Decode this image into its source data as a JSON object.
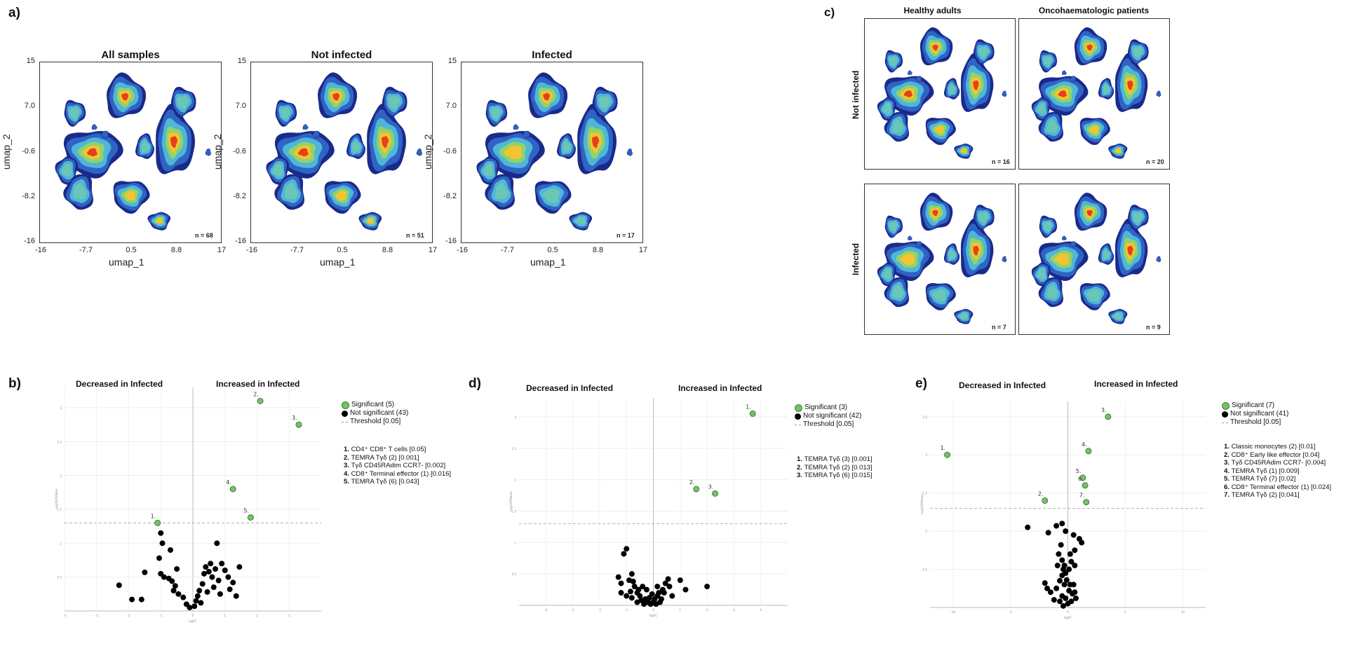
{
  "panel_a": {
    "letter": "a)",
    "plots": [
      {
        "title": "All samples",
        "n": "n = 68"
      },
      {
        "title": "Not infected",
        "n": "n = 51"
      },
      {
        "title": "Infected",
        "n": "n = 17"
      }
    ],
    "x_ticks": [
      "-16",
      "-7.7",
      "0.5",
      "8.8",
      "17"
    ],
    "y_ticks": [
      "15",
      "7.0",
      "-0.6",
      "-8.2",
      "-16"
    ],
    "xlabel": "umap_1",
    "ylabel": "umap_2"
  },
  "panel_c": {
    "letter": "c)",
    "col_titles": [
      "Healthy adults",
      "Oncohaematologic patients"
    ],
    "row_titles": [
      "Not infected",
      "Infected"
    ],
    "n_labels": [
      "n = 16",
      "n = 20",
      "n = 7",
      "n = 9"
    ]
  },
  "colors": {
    "significant": "#77c06a",
    "not_significant": "#000000",
    "threshold": "#b0b0b0"
  },
  "chart_data": [
    {
      "type": "scatter",
      "panel": "b)",
      "title_left": "Decreased in Infected",
      "title_right": "Increased in Infected",
      "xlabel": "logFC",
      "ylabel": "-Log10(PValue)",
      "xlim": [
        -4,
        4
      ],
      "ylim": [
        0,
        3.3
      ],
      "x_ticks": [
        "-4",
        "-3",
        "-2",
        "-1",
        "0",
        "1",
        "2",
        "3"
      ],
      "y_ticks": [
        "0.5",
        "1",
        "1.5",
        "2",
        "2.5",
        "3"
      ],
      "threshold": 1.3,
      "legend": [
        "Significant (5)",
        "Not significant (43)",
        "Threshold [0.05]"
      ],
      "significant": [
        {
          "label": "1.",
          "x": -1.1,
          "y": 1.3
        },
        {
          "label": "2.",
          "x": 2.1,
          "y": 3.1
        },
        {
          "label": "3.",
          "x": 3.3,
          "y": 2.75
        },
        {
          "label": "4.",
          "x": 1.25,
          "y": 1.8
        },
        {
          "label": "5.",
          "x": 1.8,
          "y": 1.38
        }
      ],
      "sig_list": [
        {
          "num": "1.",
          "text": "CD4⁺ CD8⁺ T cells [0.05]"
        },
        {
          "num": "2.",
          "text": "TEMRA Tγδ (2) [0.001]"
        },
        {
          "num": "3.",
          "text": "Tγδ CD45RAdim CCR7- [0.002]"
        },
        {
          "num": "4.",
          "text": "CD8⁺ Terminal effector (1) [0.016]"
        },
        {
          "num": "5.",
          "text": "TEMRA Tγδ (6) [0.043]"
        }
      ],
      "not_significant": [
        [
          -2.3,
          0.38
        ],
        [
          -1.9,
          0.17
        ],
        [
          -1.6,
          0.17
        ],
        [
          -1.5,
          0.57
        ],
        [
          -1.0,
          1.15
        ],
        [
          -0.95,
          1.0
        ],
        [
          -1.05,
          0.78
        ],
        [
          -0.7,
          0.9
        ],
        [
          -1.0,
          0.55
        ],
        [
          -0.9,
          0.5
        ],
        [
          -0.75,
          0.48
        ],
        [
          -0.65,
          0.44
        ],
        [
          -0.5,
          0.62
        ],
        [
          -0.6,
          0.3
        ],
        [
          -0.55,
          0.37
        ],
        [
          -0.45,
          0.25
        ],
        [
          -0.3,
          0.2
        ],
        [
          -0.2,
          0.1
        ],
        [
          -0.1,
          0.05
        ],
        [
          0.05,
          0.07
        ],
        [
          0.1,
          0.15
        ],
        [
          0.15,
          0.22
        ],
        [
          0.2,
          0.3
        ],
        [
          0.3,
          0.4
        ],
        [
          0.35,
          0.55
        ],
        [
          0.4,
          0.65
        ],
        [
          0.5,
          0.58
        ],
        [
          0.55,
          0.7
        ],
        [
          0.6,
          0.5
        ],
        [
          0.7,
          0.62
        ],
        [
          0.8,
          0.45
        ],
        [
          0.9,
          0.7
        ],
        [
          1.0,
          0.6
        ],
        [
          1.1,
          0.5
        ],
        [
          0.75,
          1.0
        ],
        [
          0.45,
          0.28
        ],
        [
          0.25,
          0.12
        ],
        [
          0.65,
          0.35
        ],
        [
          0.85,
          0.25
        ],
        [
          1.15,
          0.32
        ],
        [
          1.25,
          0.42
        ],
        [
          1.45,
          0.65
        ],
        [
          1.35,
          0.22
        ]
      ]
    },
    {
      "type": "scatter",
      "panel": "d)",
      "title_left": "Decreased in Infected",
      "title_right": "Increased in Infected",
      "xlabel": "logFC",
      "ylabel": "-Log10(PValue)",
      "xlim": [
        -5,
        5
      ],
      "ylim": [
        0,
        3.3
      ],
      "x_ticks": [
        "-4",
        "-3",
        "-2",
        "-1",
        "0",
        "1",
        "2",
        "3",
        "4"
      ],
      "y_ticks": [
        "0.5",
        "1",
        "1.5",
        "2",
        "2.5",
        "3"
      ],
      "threshold": 1.3,
      "legend": [
        "Significant (3)",
        "Not significant (42)",
        "Threshold [0.05]"
      ],
      "significant": [
        {
          "label": "1.",
          "x": 3.7,
          "y": 3.05
        },
        {
          "label": "2.",
          "x": 1.6,
          "y": 1.85
        },
        {
          "label": "3.",
          "x": 2.3,
          "y": 1.78
        }
      ],
      "sig_list": [
        {
          "num": "1.",
          "text": "TEMRA Tγδ (3) [0.001]"
        },
        {
          "num": "2.",
          "text": "TEMRA Tγδ (2) [0.013]"
        },
        {
          "num": "3.",
          "text": "TEMRA Tγδ (6) [0.015]"
        }
      ],
      "not_significant": [
        [
          -1.0,
          0.9
        ],
        [
          -1.1,
          0.82
        ],
        [
          -0.8,
          0.5
        ],
        [
          -0.9,
          0.4
        ],
        [
          -1.2,
          0.35
        ],
        [
          -1.3,
          0.45
        ],
        [
          -0.7,
          0.3
        ],
        [
          -0.85,
          0.22
        ],
        [
          -1.0,
          0.15
        ],
        [
          -1.2,
          0.2
        ],
        [
          -0.6,
          0.2
        ],
        [
          -0.5,
          0.15
        ],
        [
          -0.45,
          0.08
        ],
        [
          -0.3,
          0.1
        ],
        [
          -0.35,
          0.02
        ],
        [
          -0.2,
          0.05
        ],
        [
          -0.15,
          0.12
        ],
        [
          -0.1,
          0.02
        ],
        [
          0.0,
          0.05
        ],
        [
          0.05,
          0.1
        ],
        [
          0.1,
          0.02
        ],
        [
          0.15,
          0.15
        ],
        [
          0.2,
          0.2
        ],
        [
          0.3,
          0.1
        ],
        [
          0.35,
          0.25
        ],
        [
          0.45,
          0.35
        ],
        [
          0.55,
          0.42
        ],
        [
          0.6,
          0.3
        ],
        [
          0.7,
          0.15
        ],
        [
          1.0,
          0.4
        ],
        [
          1.2,
          0.25
        ],
        [
          2.0,
          0.3
        ],
        [
          -0.6,
          0.05
        ],
        [
          -0.8,
          0.12
        ],
        [
          -0.25,
          0.25
        ],
        [
          0.25,
          0.05
        ],
        [
          -0.05,
          0.18
        ],
        [
          0.4,
          0.2
        ],
        [
          -0.4,
          0.3
        ],
        [
          0.15,
          0.3
        ],
        [
          -0.55,
          0.25
        ],
        [
          -0.75,
          0.38
        ]
      ]
    },
    {
      "type": "scatter",
      "panel": "e)",
      "title_left": "Decreased in Infected",
      "title_right": "Increased in Infected",
      "xlabel": "logFC",
      "ylabel": "-Log10(PValue)",
      "xlim": [
        -12,
        12
      ],
      "ylim": [
        0,
        2.7
      ],
      "x_ticks": [
        "-10",
        "-5",
        "0",
        "5",
        "10"
      ],
      "y_ticks": [
        "0.5",
        "1",
        "1.5",
        "2",
        "2.5"
      ],
      "threshold": 1.3,
      "legend": [
        "Significant (7)",
        "Not significant (41)",
        "Threshold [0.05]"
      ],
      "significant": [
        {
          "label": "1.",
          "x": -10.5,
          "y": 2.0
        },
        {
          "label": "2.",
          "x": -2.0,
          "y": 1.4
        },
        {
          "label": "3.",
          "x": 3.5,
          "y": 2.5
        },
        {
          "label": "4.",
          "x": 1.8,
          "y": 2.05
        },
        {
          "label": "5.",
          "x": 1.3,
          "y": 1.7
        },
        {
          "label": "6.",
          "x": 1.5,
          "y": 1.6
        },
        {
          "label": "7.",
          "x": 1.6,
          "y": 1.38
        }
      ],
      "sig_list": [
        {
          "num": "1.",
          "text": "Classic monocytes (2) [0.01]"
        },
        {
          "num": "2.",
          "text": "CD8⁺ Early like effector [0.04]"
        },
        {
          "num": "3.",
          "text": "Tγδ CD45RAdim CCR7- [0.004]"
        },
        {
          "num": "4.",
          "text": "TEMRA Tγδ (1) [0.009]"
        },
        {
          "num": "5.",
          "text": "TEMRA Tγδ (7) [0.02]"
        },
        {
          "num": "6.",
          "text": "CD8⁺ Terminal effector (1) [0.024]"
        },
        {
          "num": "7.",
          "text": "TEMRA Tγδ (2) [0.041]"
        }
      ],
      "not_significant": [
        [
          -3.5,
          1.05
        ],
        [
          -1.0,
          1.07
        ],
        [
          -1.7,
          0.98
        ],
        [
          -0.5,
          1.1
        ],
        [
          -0.2,
          1.0
        ],
        [
          0.5,
          0.95
        ],
        [
          1.0,
          0.9
        ],
        [
          1.2,
          0.85
        ],
        [
          0.6,
          0.75
        ],
        [
          0.2,
          0.7
        ],
        [
          -0.6,
          0.82
        ],
        [
          -0.8,
          0.7
        ],
        [
          -0.5,
          0.62
        ],
        [
          -0.9,
          0.55
        ],
        [
          -0.3,
          0.55
        ],
        [
          0.3,
          0.6
        ],
        [
          0.6,
          0.55
        ],
        [
          -0.2,
          0.45
        ],
        [
          0.1,
          0.5
        ],
        [
          -0.5,
          0.42
        ],
        [
          -0.7,
          0.35
        ],
        [
          -0.3,
          0.3
        ],
        [
          -2.0,
          0.32
        ],
        [
          -1.8,
          0.25
        ],
        [
          -1.5,
          0.2
        ],
        [
          0.2,
          0.3
        ],
        [
          0.5,
          0.3
        ],
        [
          -1.0,
          0.25
        ],
        [
          -0.5,
          0.15
        ],
        [
          -0.2,
          0.12
        ],
        [
          0.0,
          0.05
        ],
        [
          0.3,
          0.08
        ],
        [
          -0.7,
          0.08
        ],
        [
          0.6,
          0.2
        ],
        [
          0.7,
          0.12
        ],
        [
          0.4,
          0.18
        ],
        [
          -0.4,
          0.02
        ],
        [
          -1.2,
          0.1
        ],
        [
          0.1,
          0.22
        ],
        [
          -0.1,
          0.36
        ],
        [
          -0.4,
          0.5
        ]
      ]
    }
  ]
}
